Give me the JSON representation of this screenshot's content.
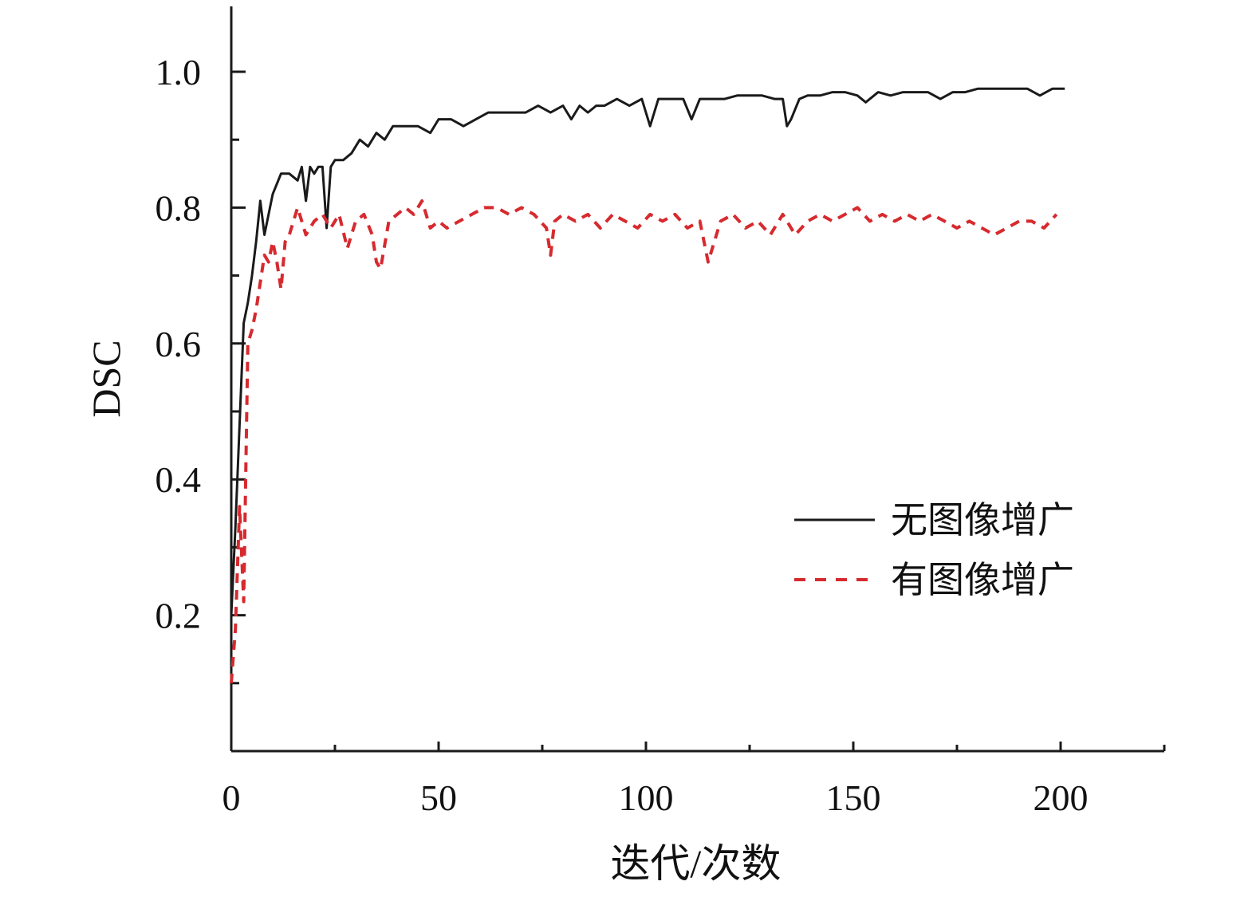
{
  "chart_data": {
    "type": "line",
    "title": "",
    "xlabel": "迭代/次数",
    "ylabel": "DSC",
    "xlim": [
      0,
      225
    ],
    "ylim": [
      0,
      1.1
    ],
    "xticks": [
      "0",
      "50",
      "100",
      "150",
      "200"
    ],
    "xtick_values": [
      0,
      50,
      100,
      150,
      200
    ],
    "xminor_values": [
      25,
      75,
      125,
      175,
      225
    ],
    "yticks": [
      "0.2",
      "0.4",
      "0.6",
      "0.8",
      "1.0"
    ],
    "ytick_values": [
      0.2,
      0.4,
      0.6,
      0.8,
      1.0
    ],
    "yminor_values": [
      0.1,
      0.3,
      0.5,
      0.7,
      0.9
    ],
    "grid": false,
    "legend_position": "right, lower-middle",
    "series": [
      {
        "name": "无图像增广",
        "style": "solid",
        "color": "#1a1a1a",
        "x": [
          0,
          1,
          2,
          3,
          4,
          5,
          6,
          7,
          8,
          9,
          10,
          12,
          14,
          16,
          17,
          18,
          19,
          20,
          21,
          22,
          23,
          24,
          25,
          27,
          29,
          31,
          33,
          35,
          37,
          39,
          42,
          45,
          48,
          50,
          53,
          56,
          59,
          62,
          65,
          68,
          71,
          74,
          77,
          80,
          82,
          84,
          86,
          88,
          90,
          93,
          96,
          99,
          101,
          103,
          106,
          109,
          111,
          113,
          116,
          119,
          122,
          125,
          128,
          131,
          133,
          134,
          135,
          137,
          139,
          142,
          145,
          148,
          151,
          153,
          156,
          159,
          162,
          165,
          168,
          171,
          174,
          177,
          180,
          183,
          186,
          189,
          192,
          195,
          198,
          201
        ],
        "y": [
          0.2,
          0.33,
          0.48,
          0.63,
          0.66,
          0.7,
          0.75,
          0.81,
          0.76,
          0.79,
          0.82,
          0.85,
          0.85,
          0.84,
          0.86,
          0.81,
          0.86,
          0.85,
          0.86,
          0.86,
          0.77,
          0.86,
          0.87,
          0.87,
          0.88,
          0.9,
          0.89,
          0.91,
          0.9,
          0.92,
          0.92,
          0.92,
          0.91,
          0.93,
          0.93,
          0.92,
          0.93,
          0.94,
          0.94,
          0.94,
          0.94,
          0.95,
          0.94,
          0.95,
          0.93,
          0.95,
          0.94,
          0.95,
          0.95,
          0.96,
          0.95,
          0.96,
          0.92,
          0.96,
          0.96,
          0.96,
          0.93,
          0.96,
          0.96,
          0.96,
          0.965,
          0.965,
          0.965,
          0.96,
          0.96,
          0.92,
          0.93,
          0.96,
          0.965,
          0.965,
          0.97,
          0.97,
          0.965,
          0.955,
          0.97,
          0.965,
          0.97,
          0.97,
          0.97,
          0.96,
          0.97,
          0.97,
          0.975,
          0.975,
          0.975,
          0.975,
          0.975,
          0.965,
          0.975,
          0.975
        ]
      },
      {
        "name": "有图像增广",
        "style": "dashed",
        "color": "#d62a2f",
        "x": [
          0,
          1,
          2,
          3,
          4,
          5,
          6,
          7,
          8,
          9,
          10,
          11,
          12,
          13,
          14,
          16,
          18,
          20,
          22,
          24,
          26,
          28,
          30,
          32,
          34,
          35,
          36,
          38,
          40,
          42,
          44,
          46,
          48,
          50,
          52,
          55,
          58,
          61,
          64,
          67,
          70,
          73,
          76,
          77,
          78,
          80,
          83,
          86,
          89,
          92,
          95,
          98,
          101,
          104,
          107,
          110,
          113,
          115,
          116,
          118,
          121,
          124,
          127,
          130,
          133,
          136,
          139,
          142,
          145,
          148,
          151,
          154,
          157,
          160,
          163,
          166,
          169,
          172,
          175,
          178,
          181,
          184,
          187,
          190,
          193,
          196,
          199
        ],
        "y": [
          0.1,
          0.18,
          0.36,
          0.22,
          0.6,
          0.62,
          0.65,
          0.69,
          0.73,
          0.72,
          0.75,
          0.72,
          0.68,
          0.75,
          0.76,
          0.8,
          0.76,
          0.78,
          0.79,
          0.77,
          0.79,
          0.74,
          0.78,
          0.79,
          0.76,
          0.72,
          0.71,
          0.78,
          0.79,
          0.8,
          0.79,
          0.81,
          0.77,
          0.78,
          0.77,
          0.78,
          0.79,
          0.8,
          0.8,
          0.79,
          0.8,
          0.79,
          0.77,
          0.73,
          0.78,
          0.79,
          0.78,
          0.79,
          0.77,
          0.79,
          0.78,
          0.77,
          0.79,
          0.78,
          0.79,
          0.77,
          0.78,
          0.72,
          0.74,
          0.78,
          0.79,
          0.77,
          0.78,
          0.76,
          0.79,
          0.76,
          0.78,
          0.79,
          0.78,
          0.79,
          0.8,
          0.78,
          0.79,
          0.78,
          0.79,
          0.78,
          0.79,
          0.78,
          0.77,
          0.78,
          0.77,
          0.76,
          0.77,
          0.78,
          0.78,
          0.77,
          0.79
        ]
      }
    ]
  }
}
